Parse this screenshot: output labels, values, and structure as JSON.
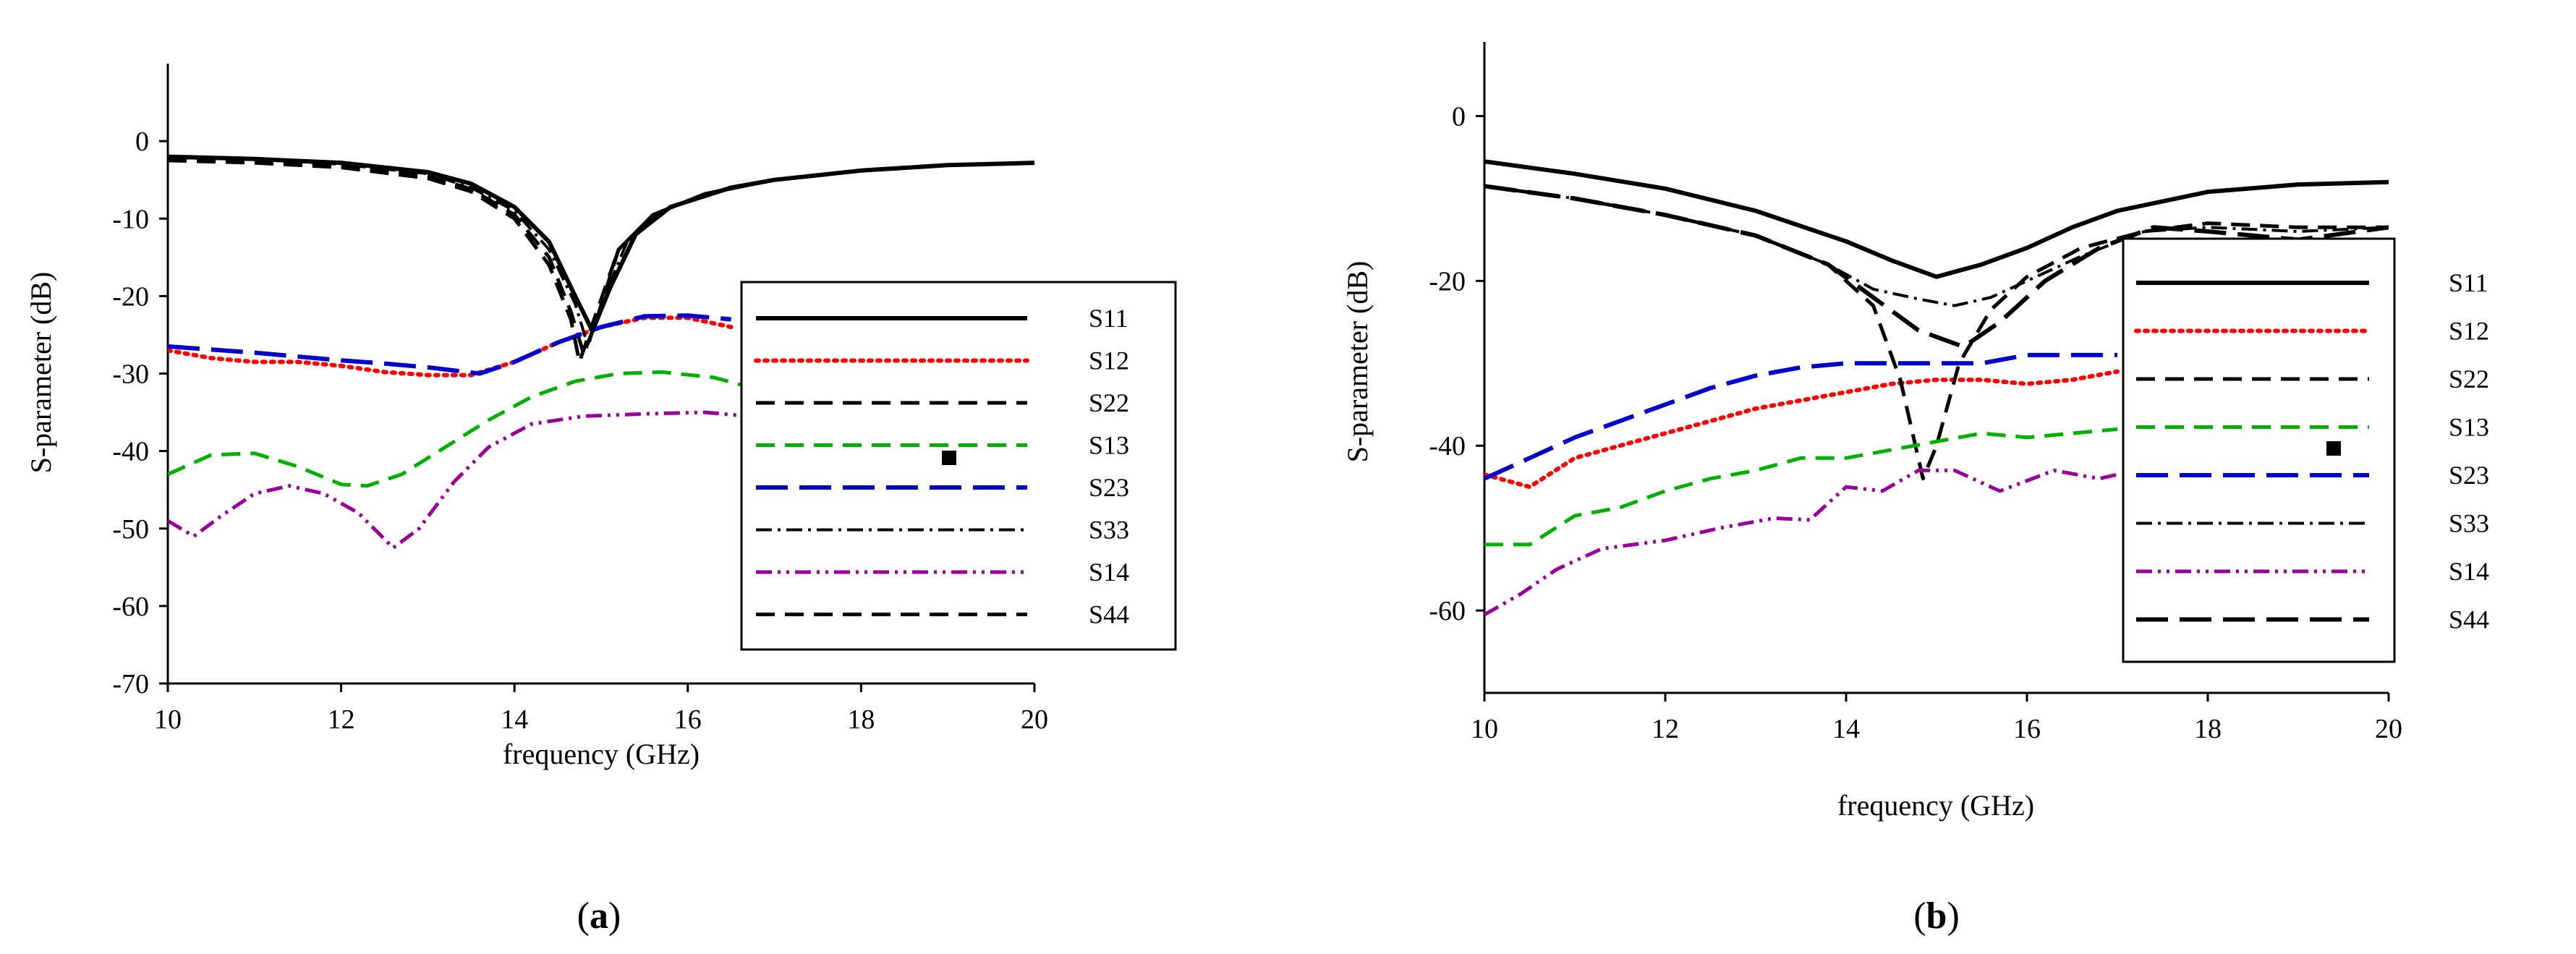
{
  "chart_data": [
    {
      "type": "line",
      "panel": "a",
      "caption": "(a)",
      "caption_parts": [
        "(",
        "a",
        ")"
      ],
      "xlabel": "frequency (GHz)",
      "ylabel": "S-parameter (dB)",
      "xlim": [
        10,
        20
      ],
      "ylim": [
        -70,
        10
      ],
      "xticks": [
        10,
        12,
        14,
        16,
        18,
        20
      ],
      "yticks": [
        0,
        -10,
        -20,
        -30,
        -40,
        -50,
        -60,
        -70
      ],
      "legend_position": "right",
      "series": [
        {
          "name": "S11",
          "color": "#000000",
          "dash": "solid",
          "points": [
            [
              10,
              -2
            ],
            [
              11,
              -2.3
            ],
            [
              12,
              -2.8
            ],
            [
              13,
              -4
            ],
            [
              13.5,
              -5.5
            ],
            [
              14,
              -8.5
            ],
            [
              14.4,
              -13
            ],
            [
              14.7,
              -20
            ],
            [
              14.9,
              -24.5
            ],
            [
              15.1,
              -19
            ],
            [
              15.4,
              -12
            ],
            [
              15.8,
              -8.5
            ],
            [
              16.5,
              -6
            ],
            [
              17,
              -5
            ],
            [
              18,
              -3.8
            ],
            [
              19,
              -3.1
            ],
            [
              20,
              -2.8
            ]
          ]
        },
        {
          "name": "S12",
          "color": "#ff0000",
          "dash": "dotted",
          "points": [
            [
              10,
              -27
            ],
            [
              10.5,
              -28
            ],
            [
              11,
              -28.5
            ],
            [
              11.5,
              -28.5
            ],
            [
              12,
              -29
            ],
            [
              12.5,
              -29.8
            ],
            [
              13,
              -30.2
            ],
            [
              13.5,
              -30.2
            ],
            [
              14,
              -28.5
            ],
            [
              14.5,
              -26
            ],
            [
              15,
              -24
            ],
            [
              15.5,
              -22.8
            ],
            [
              16,
              -22.8
            ],
            [
              16.5,
              -24
            ]
          ]
        },
        {
          "name": "S22",
          "color": "#000000",
          "dash": "dash",
          "points": [
            [
              10,
              -2.3
            ],
            [
              11,
              -2.6
            ],
            [
              12,
              -3.2
            ],
            [
              13,
              -4.5
            ],
            [
              13.5,
              -6.2
            ],
            [
              14,
              -9.5
            ],
            [
              14.4,
              -15
            ],
            [
              14.65,
              -22
            ],
            [
              14.8,
              -27.5
            ],
            [
              14.95,
              -23
            ],
            [
              15.2,
              -14
            ],
            [
              15.6,
              -9.5
            ],
            [
              16.2,
              -6.8
            ],
            [
              17,
              -5
            ],
            [
              18,
              -3.8
            ],
            [
              19,
              -3.1
            ],
            [
              20,
              -2.8
            ]
          ]
        },
        {
          "name": "S13",
          "color": "#00b000",
          "dash": "dash",
          "points": [
            [
              10,
              -43
            ],
            [
              10.5,
              -40.5
            ],
            [
              11,
              -40.3
            ],
            [
              11.5,
              -42
            ],
            [
              12,
              -44.3
            ],
            [
              12.3,
              -44.5
            ],
            [
              12.7,
              -43
            ],
            [
              13.2,
              -39.5
            ],
            [
              13.7,
              -36
            ],
            [
              14.2,
              -33
            ],
            [
              14.7,
              -31
            ],
            [
              15.2,
              -30
            ],
            [
              15.7,
              -29.8
            ],
            [
              16.3,
              -30.5
            ],
            [
              16.8,
              -32
            ]
          ]
        },
        {
          "name": "S23",
          "color": "#0000cc",
          "dash": "longdash",
          "points": [
            [
              10,
              -26.5
            ],
            [
              11,
              -27.3
            ],
            [
              12,
              -28.3
            ],
            [
              12.5,
              -28.7
            ],
            [
              13,
              -29.2
            ],
            [
              13.6,
              -30
            ],
            [
              14,
              -28.5
            ],
            [
              14.5,
              -26
            ],
            [
              15,
              -24
            ],
            [
              15.5,
              -22.6
            ],
            [
              16,
              -22.5
            ],
            [
              16.5,
              -23
            ]
          ]
        },
        {
          "name": "S33",
          "color": "#000000",
          "dash": "dashdot",
          "points": [
            [
              10,
              -2
            ],
            [
              11,
              -2.3
            ],
            [
              12,
              -3
            ],
            [
              13,
              -4.2
            ],
            [
              13.5,
              -6
            ],
            [
              14,
              -9
            ],
            [
              14.4,
              -14
            ],
            [
              14.7,
              -21
            ],
            [
              14.85,
              -26.5
            ],
            [
              15,
              -21
            ],
            [
              15.3,
              -13
            ],
            [
              15.7,
              -9
            ],
            [
              16.3,
              -6.5
            ],
            [
              17,
              -5
            ],
            [
              18,
              -3.8
            ],
            [
              19,
              -3.1
            ],
            [
              20,
              -2.8
            ]
          ]
        },
        {
          "name": "S14",
          "color": "#990099",
          "dash": "dashdotdot",
          "points": [
            [
              10,
              -49
            ],
            [
              10.3,
              -51
            ],
            [
              10.6,
              -48.5
            ],
            [
              11,
              -45.5
            ],
            [
              11.4,
              -44.5
            ],
            [
              11.8,
              -45.5
            ],
            [
              12.2,
              -48
            ],
            [
              12.6,
              -52.5
            ],
            [
              12.9,
              -50
            ],
            [
              13.3,
              -44
            ],
            [
              13.7,
              -39.5
            ],
            [
              14.2,
              -36.5
            ],
            [
              14.8,
              -35.5
            ],
            [
              15.5,
              -35.2
            ],
            [
              16.2,
              -35
            ],
            [
              16.7,
              -35.5
            ]
          ]
        },
        {
          "name": "S44",
          "color": "#000000",
          "dash": "dash",
          "points": [
            [
              10,
              -2.5
            ],
            [
              11,
              -2.8
            ],
            [
              12,
              -3.4
            ],
            [
              13,
              -4.8
            ],
            [
              13.5,
              -6.5
            ],
            [
              14,
              -10
            ],
            [
              14.4,
              -16
            ],
            [
              14.65,
              -23
            ],
            [
              14.75,
              -28.5
            ],
            [
              14.95,
              -22
            ],
            [
              15.2,
              -14
            ],
            [
              15.6,
              -9.5
            ],
            [
              16.2,
              -6.8
            ],
            [
              17,
              -5
            ],
            [
              18,
              -3.8
            ],
            [
              19,
              -3.1
            ],
            [
              20,
              -2.8
            ]
          ]
        }
      ]
    },
    {
      "type": "line",
      "panel": "b",
      "caption": "(b)",
      "caption_parts": [
        "(",
        "b",
        ")"
      ],
      "xlabel": "frequency (GHz)",
      "ylabel": "S-parameter (dB)",
      "xlim": [
        10,
        20
      ],
      "ylim": [
        -70,
        9
      ],
      "xticks": [
        10,
        12,
        14,
        16,
        18,
        20
      ],
      "yticks": [
        0,
        -20,
        -40,
        -60
      ],
      "legend_position": "right",
      "series": [
        {
          "name": "S11",
          "color": "#000000",
          "dash": "solid",
          "points": [
            [
              10,
              -5.5
            ],
            [
              11,
              -7
            ],
            [
              12,
              -8.8
            ],
            [
              13,
              -11.5
            ],
            [
              14,
              -15.2
            ],
            [
              14.5,
              -17.5
            ],
            [
              15,
              -19.5
            ],
            [
              15.5,
              -18
            ],
            [
              16,
              -16
            ],
            [
              16.5,
              -13.5
            ],
            [
              17,
              -11.5
            ],
            [
              18,
              -9.2
            ],
            [
              19,
              -8.3
            ],
            [
              20,
              -8
            ]
          ]
        },
        {
          "name": "S12",
          "color": "#ff0000",
          "dash": "dotted",
          "points": [
            [
              10,
              -43.5
            ],
            [
              10.5,
              -45
            ],
            [
              11,
              -41.5
            ],
            [
              11.5,
              -40
            ],
            [
              12,
              -38.5
            ],
            [
              12.5,
              -37
            ],
            [
              13,
              -35.5
            ],
            [
              13.5,
              -34.5
            ],
            [
              14,
              -33.5
            ],
            [
              14.5,
              -32.5
            ],
            [
              15,
              -32
            ],
            [
              15.5,
              -32
            ],
            [
              16,
              -32.5
            ],
            [
              16.5,
              -32
            ],
            [
              17,
              -31
            ]
          ]
        },
        {
          "name": "S22",
          "color": "#000000",
          "dash": "dash",
          "points": [
            [
              10,
              -8.5
            ],
            [
              11,
              -10
            ],
            [
              12,
              -12
            ],
            [
              13,
              -14.5
            ],
            [
              13.8,
              -18
            ],
            [
              14.3,
              -23
            ],
            [
              14.6,
              -32
            ],
            [
              14.85,
              -44
            ],
            [
              15,
              -40
            ],
            [
              15.25,
              -30
            ],
            [
              15.6,
              -23.5
            ],
            [
              16,
              -19.5
            ],
            [
              16.6,
              -16
            ],
            [
              17.3,
              -14
            ],
            [
              18,
              -13
            ],
            [
              19,
              -13.5
            ],
            [
              20,
              -13.5
            ]
          ]
        },
        {
          "name": "S13",
          "color": "#00b000",
          "dash": "dash",
          "points": [
            [
              10,
              -52
            ],
            [
              10.5,
              -52
            ],
            [
              11,
              -48.5
            ],
            [
              11.5,
              -47.5
            ],
            [
              12,
              -45.5
            ],
            [
              12.5,
              -44
            ],
            [
              13,
              -43
            ],
            [
              13.5,
              -41.5
            ],
            [
              14,
              -41.5
            ],
            [
              14.5,
              -40.5
            ],
            [
              15,
              -39.5
            ],
            [
              15.5,
              -38.5
            ],
            [
              16,
              -39
            ],
            [
              16.5,
              -38.5
            ],
            [
              17,
              -38
            ]
          ]
        },
        {
          "name": "S23",
          "color": "#0000cc",
          "dash": "longdash",
          "points": [
            [
              10,
              -44
            ],
            [
              10.5,
              -41.5
            ],
            [
              11,
              -39
            ],
            [
              11.5,
              -37
            ],
            [
              12,
              -35
            ],
            [
              12.5,
              -33
            ],
            [
              13,
              -31.5
            ],
            [
              13.5,
              -30.5
            ],
            [
              14,
              -30
            ],
            [
              15,
              -30
            ],
            [
              15.5,
              -30
            ],
            [
              16,
              -29
            ],
            [
              16.5,
              -29
            ],
            [
              17,
              -29
            ]
          ]
        },
        {
          "name": "S33",
          "color": "#000000",
          "dash": "dashdot",
          "points": [
            [
              10,
              -8.5
            ],
            [
              11,
              -10
            ],
            [
              12,
              -12
            ],
            [
              13,
              -14.5
            ],
            [
              13.8,
              -18
            ],
            [
              14.3,
              -21
            ],
            [
              14.8,
              -22.2
            ],
            [
              15.2,
              -23
            ],
            [
              15.6,
              -22
            ],
            [
              16,
              -20
            ],
            [
              16.6,
              -17
            ],
            [
              17.3,
              -14
            ],
            [
              18,
              -13.5
            ],
            [
              19,
              -14
            ],
            [
              20,
              -13.5
            ]
          ]
        },
        {
          "name": "S14",
          "color": "#990099",
          "dash": "dashdotdot",
          "points": [
            [
              10,
              -60.5
            ],
            [
              10.4,
              -58
            ],
            [
              10.8,
              -55
            ],
            [
              11.3,
              -52.5
            ],
            [
              12,
              -51.5
            ],
            [
              12.6,
              -50
            ],
            [
              13.2,
              -48.8
            ],
            [
              13.6,
              -49
            ],
            [
              14,
              -45
            ],
            [
              14.4,
              -45.5
            ],
            [
              14.8,
              -43
            ],
            [
              15.2,
              -43
            ],
            [
              15.7,
              -45.5
            ],
            [
              16.3,
              -43
            ],
            [
              16.8,
              -44
            ],
            [
              17,
              -43.5
            ]
          ]
        },
        {
          "name": "S44",
          "color": "#000000",
          "dash": "longdash",
          "points": [
            [
              10,
              -8.5
            ],
            [
              11,
              -10
            ],
            [
              12,
              -12
            ],
            [
              13,
              -14.5
            ],
            [
              13.8,
              -18
            ],
            [
              14.3,
              -22
            ],
            [
              14.8,
              -26
            ],
            [
              15.3,
              -28
            ],
            [
              15.7,
              -25
            ],
            [
              16.2,
              -20
            ],
            [
              16.8,
              -16
            ],
            [
              17.4,
              -13.5
            ],
            [
              18,
              -14
            ],
            [
              19,
              -15
            ],
            [
              20,
              -13.5
            ]
          ]
        }
      ]
    }
  ]
}
